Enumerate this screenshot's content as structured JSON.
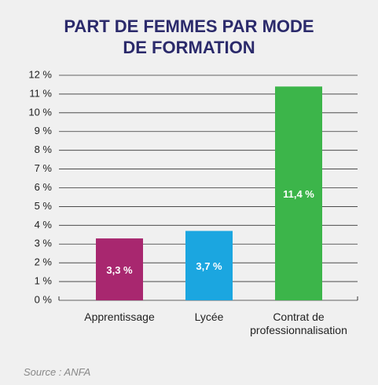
{
  "chart_data": {
    "type": "bar",
    "title": "PART DE FEMMES PAR MODE DE FORMATION",
    "categories": [
      "Apprentissage",
      "Lycée",
      "Contrat de professionnalisation"
    ],
    "values": [
      3.3,
      3.7,
      11.4
    ],
    "value_labels": [
      "3,3 %",
      "3,7 %",
      "11,4 %"
    ],
    "colors": [
      "#a8276f",
      "#1ba6e0",
      "#3cb54a"
    ],
    "ylim": [
      0,
      12
    ],
    "yticks": [
      {
        "value": 0,
        "label": "0 %"
      },
      {
        "value": 1,
        "label": "1 %"
      },
      {
        "value": 2,
        "label": "2 %"
      },
      {
        "value": 3,
        "label": "3 %"
      },
      {
        "value": 4,
        "label": "4 %"
      },
      {
        "value": 5,
        "label": "5 %"
      },
      {
        "value": 6,
        "label": "6 %"
      },
      {
        "value": 7,
        "label": "7 %"
      },
      {
        "value": 8,
        "label": "8 %"
      },
      {
        "value": 9,
        "label": "9 %"
      },
      {
        "value": 10,
        "label": "10 %"
      },
      {
        "value": 11,
        "label": "11 %"
      },
      {
        "value": 12,
        "label": "12 %"
      }
    ],
    "grid": true,
    "source": "Source : ANFA"
  }
}
